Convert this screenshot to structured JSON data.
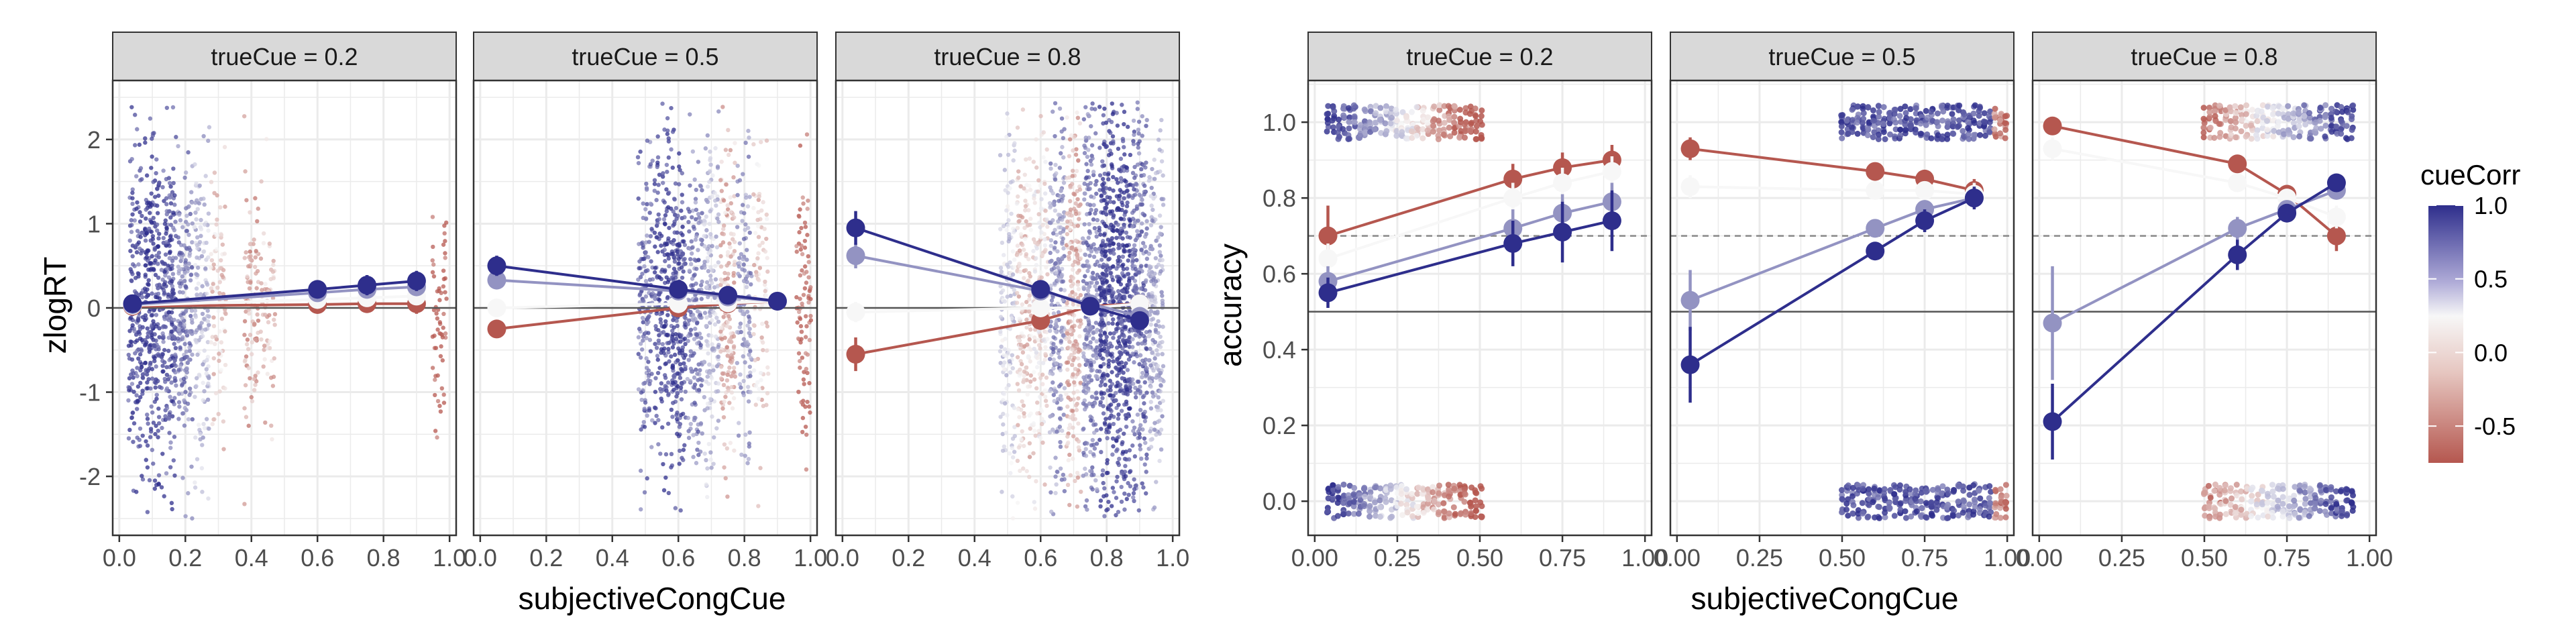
{
  "figure": {
    "xlabel": "subjectiveCongCue",
    "legend": {
      "title": "cueCorr",
      "ticks": [
        "1.0",
        "0.5",
        "0.0",
        "-0.5"
      ],
      "tick_values": [
        1.0,
        0.5,
        0.0,
        -0.5
      ],
      "range": [
        -0.75,
        1.0
      ],
      "colors": {
        "high": "#2e2e8c",
        "mid": "#f7f7f7",
        "low": "#b5574f"
      },
      "placement": "right"
    },
    "colors": {
      "strip_bg": "#d9d9d9",
      "grid": "#ebebeb",
      "panel_border": "#333333"
    }
  },
  "chart_data": [
    {
      "type": "scatter",
      "ylabel": "zlogRT",
      "xlim": [
        -0.02,
        1.02
      ],
      "ylim": [
        -2.7,
        2.7
      ],
      "xticks": [
        "0.0",
        "0.2",
        "0.4",
        "0.6",
        "0.8",
        "1.0"
      ],
      "xtick_values": [
        0.0,
        0.2,
        0.4,
        0.6,
        0.8,
        1.0
      ],
      "yticks": [
        "2",
        "1",
        "0",
        "-1",
        "-2"
      ],
      "ytick_values": [
        2,
        1,
        0,
        -1,
        -2
      ],
      "hline": [
        0
      ],
      "grid": true,
      "facets": [
        {
          "strip": "trueCue = 0.2",
          "point_clusters": [
            {
              "x": 0.05,
              "cueCorr": 0.85,
              "n": 30,
              "yspread": 0.9
            },
            {
              "x": 0.1,
              "cueCorr": 0.95,
              "n": 40,
              "yspread": 1.0
            },
            {
              "x": 0.15,
              "cueCorr": 0.8,
              "n": 40,
              "yspread": 1.0
            },
            {
              "x": 0.2,
              "cueCorr": 0.6,
              "n": 30,
              "yspread": 0.9
            },
            {
              "x": 0.25,
              "cueCorr": 0.3,
              "n": 25,
              "yspread": 0.9
            },
            {
              "x": 0.3,
              "cueCorr": -0.2,
              "n": 15,
              "yspread": 0.8
            },
            {
              "x": 0.4,
              "cueCorr": -0.4,
              "n": 15,
              "yspread": 0.7
            },
            {
              "x": 0.45,
              "cueCorr": -0.3,
              "n": 10,
              "yspread": 0.6
            },
            {
              "x": 0.97,
              "cueCorr": -0.8,
              "n": 10,
              "yspread": 0.6
            }
          ],
          "series": [
            {
              "cueCorr": 1.0,
              "x": [
                0.04,
                0.6,
                0.75,
                0.9
              ],
              "y": [
                0.05,
                0.22,
                0.27,
                0.32
              ],
              "err": [
                0.05,
                0.1,
                0.12,
                0.12
              ]
            },
            {
              "cueCorr": 0.5,
              "x": [
                0.04,
                0.6,
                0.75,
                0.9
              ],
              "y": [
                0.04,
                0.18,
                0.22,
                0.25
              ],
              "err": [
                0.05,
                0.08,
                0.1,
                0.1
              ]
            },
            {
              "cueCorr": 0.0,
              "x": [
                0.04,
                0.6,
                0.75,
                0.9
              ],
              "y": [
                0.03,
                0.1,
                0.12,
                0.14
              ],
              "err": [
                0.05,
                0.06,
                0.06,
                0.08
              ]
            },
            {
              "cueCorr": -0.75,
              "x": [
                0.04,
                0.6,
                0.75,
                0.9
              ],
              "y": [
                0.02,
                0.04,
                0.05,
                0.05
              ],
              "err": [
                0.05,
                0.08,
                0.08,
                0.12
              ]
            }
          ]
        },
        {
          "strip": "trueCue = 0.5",
          "point_clusters": [
            {
              "x": 0.5,
              "cueCorr": 0.7,
              "n": 25,
              "yspread": 0.9
            },
            {
              "x": 0.55,
              "cueCorr": 0.9,
              "n": 30,
              "yspread": 1.0
            },
            {
              "x": 0.6,
              "cueCorr": 0.9,
              "n": 40,
              "yspread": 1.0
            },
            {
              "x": 0.65,
              "cueCorr": 0.6,
              "n": 30,
              "yspread": 1.0
            },
            {
              "x": 0.7,
              "cueCorr": 0.3,
              "n": 30,
              "yspread": 1.0
            },
            {
              "x": 0.75,
              "cueCorr": -0.3,
              "n": 30,
              "yspread": 1.0
            },
            {
              "x": 0.8,
              "cueCorr": 0.5,
              "n": 20,
              "yspread": 0.9
            },
            {
              "x": 0.85,
              "cueCorr": -0.2,
              "n": 15,
              "yspread": 0.8
            },
            {
              "x": 0.98,
              "cueCorr": -0.7,
              "n": 15,
              "yspread": 0.8
            }
          ],
          "series": [
            {
              "cueCorr": 1.0,
              "x": [
                0.05,
                0.6,
                0.75,
                0.9
              ],
              "y": [
                0.5,
                0.22,
                0.15,
                0.08
              ],
              "err": [
                0.12,
                0.06,
                0.06,
                0.05
              ]
            },
            {
              "cueCorr": 0.5,
              "x": [
                0.05,
                0.6,
                0.75,
                0.9
              ],
              "y": [
                0.33,
                0.2,
                0.13,
                0.08
              ],
              "err": [
                0.1,
                0.06,
                0.05,
                0.05
              ]
            },
            {
              "cueCorr": 0.0,
              "x": [
                0.05,
                0.6,
                0.75,
                0.9
              ],
              "y": [
                0.0,
                0.05,
                0.06,
                0.08
              ],
              "err": [
                0.08,
                0.05,
                0.05,
                0.05
              ]
            },
            {
              "cueCorr": -0.75,
              "x": [
                0.05,
                0.6,
                0.75,
                0.9
              ],
              "y": [
                -0.25,
                0.0,
                0.05,
                0.08
              ],
              "err": [
                0.1,
                0.06,
                0.05,
                0.05
              ]
            }
          ]
        },
        {
          "strip": "trueCue = 0.8",
          "point_clusters": [
            {
              "x": 0.5,
              "cueCorr": 0.2,
              "n": 25,
              "yspread": 1.1
            },
            {
              "x": 0.55,
              "cueCorr": -0.2,
              "n": 30,
              "yspread": 1.1
            },
            {
              "x": 0.6,
              "cueCorr": -0.1,
              "n": 30,
              "yspread": 1.1
            },
            {
              "x": 0.65,
              "cueCorr": 0.5,
              "n": 40,
              "yspread": 1.2
            },
            {
              "x": 0.7,
              "cueCorr": -0.3,
              "n": 40,
              "yspread": 1.2
            },
            {
              "x": 0.75,
              "cueCorr": 0.6,
              "n": 50,
              "yspread": 1.3
            },
            {
              "x": 0.8,
              "cueCorr": 0.95,
              "n": 60,
              "yspread": 1.3
            },
            {
              "x": 0.85,
              "cueCorr": 0.9,
              "n": 60,
              "yspread": 1.3
            },
            {
              "x": 0.9,
              "cueCorr": 0.7,
              "n": 50,
              "yspread": 1.3
            },
            {
              "x": 0.95,
              "cueCorr": 0.4,
              "n": 35,
              "yspread": 1.2
            }
          ],
          "series": [
            {
              "cueCorr": 1.0,
              "x": [
                0.04,
                0.6,
                0.75,
                0.9
              ],
              "y": [
                0.95,
                0.22,
                0.02,
                -0.15
              ],
              "err": [
                0.2,
                0.08,
                0.05,
                0.05
              ]
            },
            {
              "cueCorr": 0.5,
              "x": [
                0.04,
                0.6,
                0.75,
                0.9
              ],
              "y": [
                0.62,
                0.2,
                0.05,
                -0.1
              ],
              "err": [
                0.15,
                0.08,
                0.05,
                0.05
              ]
            },
            {
              "cueCorr": 0.0,
              "x": [
                0.04,
                0.6,
                0.75,
                0.9
              ],
              "y": [
                -0.05,
                0.0,
                0.0,
                0.05
              ],
              "err": [
                0.12,
                0.06,
                0.05,
                0.05
              ]
            },
            {
              "cueCorr": -0.75,
              "x": [
                0.04,
                0.6,
                0.75,
                0.9
              ],
              "y": [
                -0.55,
                -0.15,
                0.02,
                0.05
              ],
              "err": [
                0.2,
                0.08,
                0.06,
                0.06
              ]
            }
          ]
        }
      ]
    },
    {
      "type": "scatter",
      "ylabel": "accuracy",
      "xlim": [
        -0.02,
        1.02
      ],
      "ylim": [
        -0.09,
        1.11
      ],
      "xticks": [
        "0.00",
        "0.25",
        "0.50",
        "0.75",
        "1.00"
      ],
      "xtick_values": [
        0.0,
        0.25,
        0.5,
        0.75,
        1.0
      ],
      "yticks": [
        "1.0",
        "0.8",
        "0.6",
        "0.4",
        "0.2",
        "0.0"
      ],
      "ytick_values": [
        1.0,
        0.8,
        0.6,
        0.4,
        0.2,
        0.0
      ],
      "hline": [
        0.5
      ],
      "hline_dashed": [
        0.7
      ],
      "grid": true,
      "facets": [
        {
          "strip": "trueCue = 0.2",
          "point_bands": [
            {
              "y": 1.0,
              "x0": 0.04,
              "x1": 0.5
            },
            {
              "y": 0.0,
              "x0": 0.04,
              "x1": 0.5
            }
          ],
          "series": [
            {
              "cueCorr": 1.0,
              "x": [
                0.04,
                0.6,
                0.75,
                0.9
              ],
              "y": [
                0.55,
                0.68,
                0.71,
                0.74
              ],
              "err": [
                0.04,
                0.06,
                0.08,
                0.08
              ]
            },
            {
              "cueCorr": 0.5,
              "x": [
                0.04,
                0.6,
                0.75,
                0.9
              ],
              "y": [
                0.58,
                0.72,
                0.76,
                0.79
              ],
              "err": [
                0.04,
                0.05,
                0.05,
                0.05
              ]
            },
            {
              "cueCorr": 0.0,
              "x": [
                0.04,
                0.6,
                0.75,
                0.9
              ],
              "y": [
                0.64,
                0.8,
                0.84,
                0.87
              ],
              "err": [
                0.04,
                0.04,
                0.04,
                0.04
              ]
            },
            {
              "cueCorr": -0.75,
              "x": [
                0.04,
                0.6,
                0.75,
                0.9
              ],
              "y": [
                0.7,
                0.85,
                0.88,
                0.9
              ],
              "err": [
                0.08,
                0.04,
                0.04,
                0.04
              ]
            }
          ]
        },
        {
          "strip": "trueCue = 0.5",
          "point_bands": [
            {
              "y": 1.0,
              "x0": 0.5,
              "x1": 1.0
            },
            {
              "y": 0.0,
              "x0": 0.5,
              "x1": 1.0
            }
          ],
          "series": [
            {
              "cueCorr": 1.0,
              "x": [
                0.04,
                0.6,
                0.75,
                0.9
              ],
              "y": [
                0.36,
                0.66,
                0.74,
                0.8
              ],
              "err": [
                0.1,
                0.02,
                0.03,
                0.03
              ]
            },
            {
              "cueCorr": 0.5,
              "x": [
                0.04,
                0.6,
                0.75,
                0.9
              ],
              "y": [
                0.53,
                0.72,
                0.77,
                0.8
              ],
              "err": [
                0.08,
                0.02,
                0.02,
                0.02
              ]
            },
            {
              "cueCorr": 0.0,
              "x": [
                0.04,
                0.6,
                0.75,
                0.9
              ],
              "y": [
                0.83,
                0.82,
                0.82,
                0.81
              ],
              "err": [
                0.03,
                0.02,
                0.02,
                0.03
              ]
            },
            {
              "cueCorr": -0.75,
              "x": [
                0.04,
                0.6,
                0.75,
                0.9
              ],
              "y": [
                0.93,
                0.87,
                0.85,
                0.82
              ],
              "err": [
                0.03,
                0.02,
                0.02,
                0.03
              ]
            }
          ]
        },
        {
          "strip": "trueCue = 0.8",
          "point_bands": [
            {
              "y": 1.0,
              "x0": 0.5,
              "x1": 0.95
            },
            {
              "y": 0.0,
              "x0": 0.5,
              "x1": 0.95
            }
          ],
          "series": [
            {
              "cueCorr": 1.0,
              "x": [
                0.04,
                0.6,
                0.75,
                0.9
              ],
              "y": [
                0.21,
                0.65,
                0.76,
                0.84
              ],
              "err": [
                0.1,
                0.04,
                0.02,
                0.02
              ]
            },
            {
              "cueCorr": 0.5,
              "x": [
                0.04,
                0.6,
                0.75,
                0.9
              ],
              "y": [
                0.47,
                0.72,
                0.77,
                0.82
              ],
              "err": [
                0.15,
                0.03,
                0.02,
                0.02
              ]
            },
            {
              "cueCorr": 0.0,
              "x": [
                0.04,
                0.6,
                0.75,
                0.9
              ],
              "y": [
                0.93,
                0.84,
                0.8,
                0.75
              ],
              "err": [
                0.03,
                0.02,
                0.02,
                0.03
              ]
            },
            {
              "cueCorr": -0.75,
              "x": [
                0.04,
                0.6,
                0.75,
                0.9
              ],
              "y": [
                0.99,
                0.89,
                0.81,
                0.7
              ],
              "err": [
                0.02,
                0.02,
                0.02,
                0.04
              ]
            }
          ]
        }
      ]
    }
  ]
}
